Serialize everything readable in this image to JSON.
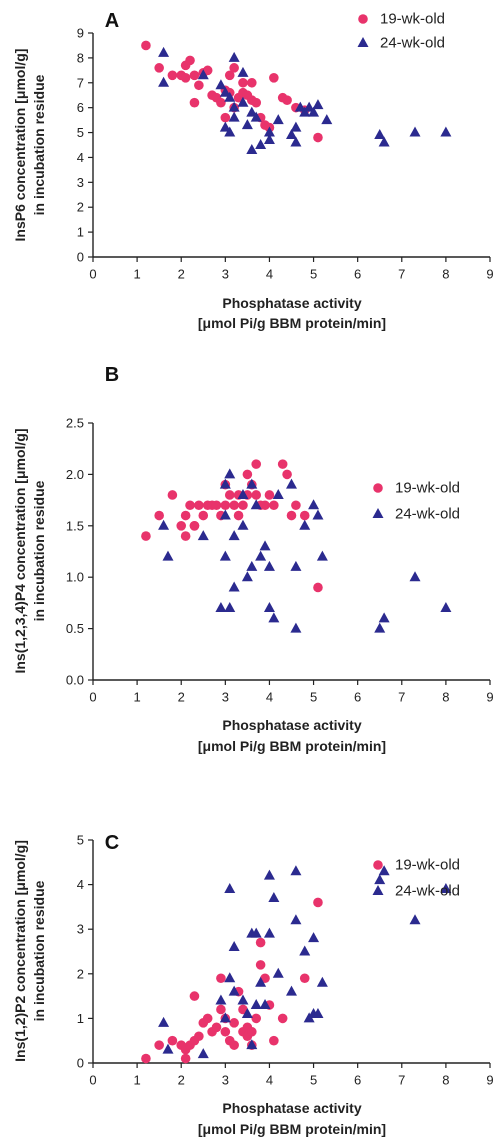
{
  "colors": {
    "series_19": "#e8336b",
    "series_24": "#2b2a8f",
    "axis": "#222222"
  },
  "chart_data": [
    {
      "type": "scatter",
      "panel": "A",
      "xlabel_line1": "Phosphatase activity",
      "xlabel_line2": "[μmol Pi/g BBM protein/min]",
      "ylabel_line1": "InsP6 concentration [μmol/g]",
      "ylabel_line2": "in incubation residue",
      "xlim": [
        0,
        9
      ],
      "ylim": [
        0,
        9
      ],
      "xticks": [
        "0",
        "1",
        "2",
        "3",
        "4",
        "5",
        "6",
        "7",
        "8",
        "9"
      ],
      "yticks": [
        "0",
        "1",
        "2",
        "3",
        "4",
        "5",
        "6",
        "7",
        "8",
        "9"
      ],
      "ytick_values": [
        0,
        1,
        2,
        3,
        4,
        5,
        6,
        7,
        8,
        9
      ],
      "legend_position": "top-right",
      "series": [
        {
          "name": "19-wk-old",
          "marker": "circle",
          "points": [
            [
              1.2,
              8.5
            ],
            [
              1.5,
              7.6
            ],
            [
              1.8,
              7.3
            ],
            [
              2.0,
              7.3
            ],
            [
              2.1,
              7.7
            ],
            [
              2.1,
              7.2
            ],
            [
              2.2,
              7.9
            ],
            [
              2.3,
              7.3
            ],
            [
              2.4,
              6.9
            ],
            [
              2.5,
              7.4
            ],
            [
              2.6,
              7.5
            ],
            [
              2.7,
              6.5
            ],
            [
              2.3,
              6.2
            ],
            [
              2.8,
              6.4
            ],
            [
              2.9,
              6.2
            ],
            [
              3.0,
              6.7
            ],
            [
              3.1,
              6.6
            ],
            [
              3.1,
              7.3
            ],
            [
              3.2,
              6.0
            ],
            [
              3.3,
              6.4
            ],
            [
              3.4,
              6.6
            ],
            [
              3.5,
              6.5
            ],
            [
              3.6,
              6.3
            ],
            [
              3.4,
              7.0
            ],
            [
              3.2,
              7.6
            ],
            [
              3.6,
              7.0
            ],
            [
              3.7,
              6.2
            ],
            [
              3.8,
              5.6
            ],
            [
              3.9,
              5.3
            ],
            [
              4.0,
              5.2
            ],
            [
              3.0,
              5.6
            ],
            [
              4.1,
              7.2
            ],
            [
              4.3,
              6.4
            ],
            [
              4.4,
              6.3
            ],
            [
              4.6,
              6.0
            ],
            [
              4.8,
              5.9
            ],
            [
              5.1,
              4.8
            ]
          ]
        },
        {
          "name": "24-wk-old",
          "marker": "triangle",
          "points": [
            [
              1.6,
              8.2
            ],
            [
              1.6,
              7.0
            ],
            [
              2.5,
              7.3
            ],
            [
              2.9,
              6.9
            ],
            [
              3.0,
              6.6
            ],
            [
              3.1,
              6.4
            ],
            [
              3.2,
              8.0
            ],
            [
              3.2,
              6.0
            ],
            [
              3.4,
              7.4
            ],
            [
              3.4,
              6.2
            ],
            [
              3.6,
              5.8
            ],
            [
              3.0,
              5.2
            ],
            [
              3.1,
              5.0
            ],
            [
              3.2,
              5.6
            ],
            [
              3.5,
              5.3
            ],
            [
              3.6,
              4.3
            ],
            [
              3.7,
              5.6
            ],
            [
              3.8,
              4.5
            ],
            [
              4.0,
              5.0
            ],
            [
              4.0,
              4.7
            ],
            [
              4.2,
              5.5
            ],
            [
              4.5,
              4.9
            ],
            [
              4.6,
              4.6
            ],
            [
              4.6,
              5.2
            ],
            [
              4.7,
              6.0
            ],
            [
              4.8,
              5.8
            ],
            [
              4.9,
              6.0
            ],
            [
              5.0,
              5.8
            ],
            [
              5.1,
              6.1
            ],
            [
              5.3,
              5.5
            ],
            [
              6.5,
              4.9
            ],
            [
              6.6,
              4.6
            ],
            [
              7.3,
              5.0
            ],
            [
              8.0,
              5.0
            ]
          ]
        }
      ]
    },
    {
      "type": "scatter",
      "panel": "B",
      "xlabel_line1": "Phosphatase activity",
      "xlabel_line2": "[μmol Pi/g BBM protein/min]",
      "ylabel_line1": "Ins(1,2,3,4)P4 concentration [μmol/g]",
      "ylabel_line2": "in incubation residue",
      "xlim": [
        0,
        9
      ],
      "ylim": [
        0,
        2.5
      ],
      "xticks": [
        "0",
        "1",
        "2",
        "3",
        "4",
        "5",
        "6",
        "7",
        "8",
        "9"
      ],
      "yticks": [
        "0.0",
        "0.5",
        "1.0",
        "1.5",
        "2.0",
        "2.5"
      ],
      "ytick_values": [
        0,
        0.5,
        1.0,
        1.5,
        2.0,
        2.5
      ],
      "legend_position": "top-right",
      "series": [
        {
          "name": "19-wk-old",
          "marker": "circle",
          "points": [
            [
              1.2,
              1.4
            ],
            [
              1.5,
              1.6
            ],
            [
              1.8,
              1.8
            ],
            [
              2.0,
              1.5
            ],
            [
              2.1,
              1.6
            ],
            [
              2.1,
              1.4
            ],
            [
              2.2,
              1.7
            ],
            [
              2.3,
              1.5
            ],
            [
              2.4,
              1.7
            ],
            [
              2.5,
              1.6
            ],
            [
              2.6,
              1.7
            ],
            [
              2.7,
              1.7
            ],
            [
              2.3,
              1.5
            ],
            [
              2.8,
              1.7
            ],
            [
              2.9,
              1.6
            ],
            [
              3.0,
              1.7
            ],
            [
              3.0,
              1.9
            ],
            [
              3.1,
              1.8
            ],
            [
              3.2,
              1.7
            ],
            [
              3.3,
              1.8
            ],
            [
              3.3,
              1.6
            ],
            [
              3.4,
              1.7
            ],
            [
              3.5,
              1.8
            ],
            [
              3.5,
              2.0
            ],
            [
              3.6,
              1.9
            ],
            [
              3.7,
              2.1
            ],
            [
              3.7,
              1.8
            ],
            [
              3.8,
              1.7
            ],
            [
              3.9,
              1.7
            ],
            [
              4.0,
              1.8
            ],
            [
              4.1,
              1.7
            ],
            [
              4.3,
              2.1
            ],
            [
              4.4,
              2.0
            ],
            [
              4.5,
              1.6
            ],
            [
              4.6,
              1.7
            ],
            [
              4.8,
              1.6
            ],
            [
              5.1,
              0.9
            ]
          ]
        },
        {
          "name": "24-wk-old",
          "marker": "triangle",
          "points": [
            [
              1.6,
              1.5
            ],
            [
              1.7,
              1.2
            ],
            [
              2.5,
              1.4
            ],
            [
              2.9,
              0.7
            ],
            [
              3.0,
              1.2
            ],
            [
              3.0,
              1.6
            ],
            [
              3.0,
              1.9
            ],
            [
              3.1,
              2.0
            ],
            [
              3.1,
              0.7
            ],
            [
              3.2,
              1.4
            ],
            [
              3.2,
              0.9
            ],
            [
              3.4,
              1.8
            ],
            [
              3.4,
              1.5
            ],
            [
              3.5,
              1.0
            ],
            [
              3.6,
              1.9
            ],
            [
              3.6,
              1.1
            ],
            [
              3.7,
              1.7
            ],
            [
              3.8,
              1.2
            ],
            [
              3.9,
              1.3
            ],
            [
              4.0,
              1.1
            ],
            [
              4.0,
              0.7
            ],
            [
              4.1,
              0.6
            ],
            [
              4.2,
              1.8
            ],
            [
              4.5,
              1.9
            ],
            [
              4.6,
              0.5
            ],
            [
              4.6,
              1.1
            ],
            [
              4.8,
              1.5
            ],
            [
              5.0,
              1.7
            ],
            [
              5.2,
              1.2
            ],
            [
              5.1,
              1.6
            ],
            [
              6.5,
              0.5
            ],
            [
              6.6,
              0.6
            ],
            [
              7.3,
              1.0
            ],
            [
              8.0,
              0.7
            ]
          ]
        }
      ]
    },
    {
      "type": "scatter",
      "panel": "C",
      "xlabel_line1": "Phosphatase activity",
      "xlabel_line2": "[μmol Pi/g BBM protein/min]",
      "ylabel_line1": "Ins(1,2)P2 concentration [μmol/g]",
      "ylabel_line2": "in incubation residue",
      "xlim": [
        0,
        9
      ],
      "ylim": [
        0,
        5
      ],
      "xticks": [
        "0",
        "1",
        "2",
        "3",
        "4",
        "5",
        "6",
        "7",
        "8",
        "9"
      ],
      "yticks": [
        "0",
        "1",
        "2",
        "3",
        "4",
        "5"
      ],
      "ytick_values": [
        0,
        1,
        2,
        3,
        4,
        5
      ],
      "legend_position": "top-right",
      "series": [
        {
          "name": "19-wk-old",
          "marker": "circle",
          "points": [
            [
              1.2,
              0.1
            ],
            [
              1.5,
              0.4
            ],
            [
              1.8,
              0.5
            ],
            [
              2.0,
              0.4
            ],
            [
              2.1,
              0.3
            ],
            [
              2.1,
              0.1
            ],
            [
              2.2,
              0.4
            ],
            [
              2.3,
              0.5
            ],
            [
              2.3,
              1.5
            ],
            [
              2.4,
              0.6
            ],
            [
              2.5,
              0.9
            ],
            [
              2.6,
              1.0
            ],
            [
              2.7,
              0.7
            ],
            [
              2.8,
              0.8
            ],
            [
              2.9,
              1.2
            ],
            [
              2.9,
              1.9
            ],
            [
              3.0,
              1.0
            ],
            [
              3.0,
              0.7
            ],
            [
              3.1,
              0.5
            ],
            [
              3.2,
              0.9
            ],
            [
              3.2,
              0.4
            ],
            [
              3.3,
              1.6
            ],
            [
              3.4,
              0.7
            ],
            [
              3.4,
              1.2
            ],
            [
              3.5,
              0.8
            ],
            [
              3.5,
              0.6
            ],
            [
              3.6,
              0.7
            ],
            [
              3.6,
              0.4
            ],
            [
              3.7,
              1.0
            ],
            [
              3.8,
              2.2
            ],
            [
              3.8,
              2.7
            ],
            [
              3.9,
              1.9
            ],
            [
              4.0,
              1.3
            ],
            [
              4.1,
              0.5
            ],
            [
              4.3,
              1.0
            ],
            [
              4.8,
              1.9
            ],
            [
              5.1,
              3.6
            ]
          ]
        },
        {
          "name": "24-wk-old",
          "marker": "triangle",
          "points": [
            [
              1.6,
              0.9
            ],
            [
              1.7,
              0.3
            ],
            [
              2.5,
              0.2
            ],
            [
              2.9,
              1.4
            ],
            [
              3.0,
              1.0
            ],
            [
              3.1,
              1.9
            ],
            [
              3.1,
              3.9
            ],
            [
              3.2,
              1.6
            ],
            [
              3.2,
              2.6
            ],
            [
              3.4,
              1.4
            ],
            [
              3.5,
              1.1
            ],
            [
              3.6,
              2.9
            ],
            [
              3.6,
              0.4
            ],
            [
              3.7,
              2.9
            ],
            [
              3.7,
              1.3
            ],
            [
              3.8,
              1.8
            ],
            [
              3.9,
              1.3
            ],
            [
              4.0,
              4.2
            ],
            [
              4.0,
              2.9
            ],
            [
              4.1,
              3.7
            ],
            [
              4.2,
              2.0
            ],
            [
              4.5,
              1.6
            ],
            [
              4.6,
              4.3
            ],
            [
              4.6,
              3.2
            ],
            [
              4.8,
              2.5
            ],
            [
              4.9,
              1.0
            ],
            [
              5.0,
              1.1
            ],
            [
              5.1,
              1.1
            ],
            [
              5.2,
              1.8
            ],
            [
              5.0,
              2.8
            ],
            [
              6.5,
              4.1
            ],
            [
              6.6,
              4.3
            ],
            [
              7.3,
              3.2
            ],
            [
              8.0,
              3.9
            ]
          ]
        }
      ]
    }
  ]
}
